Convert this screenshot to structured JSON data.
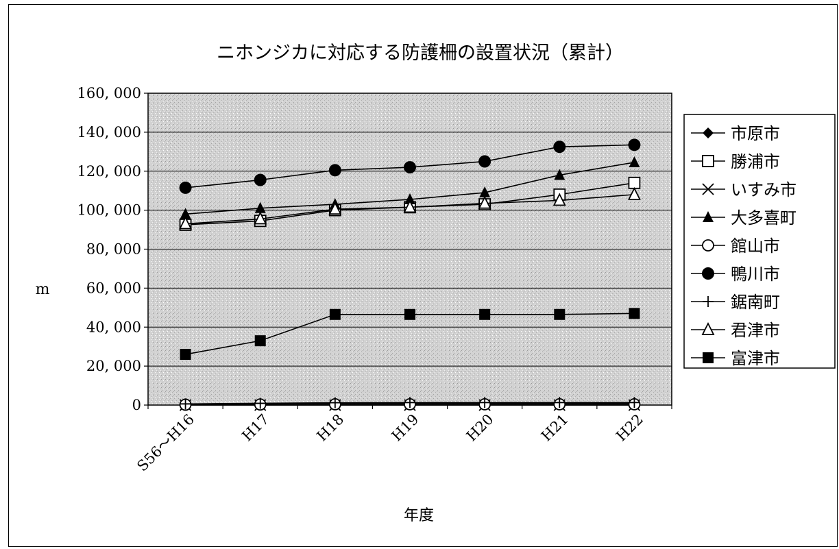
{
  "chart_data": {
    "type": "line",
    "title": "ニホンジカに対応する防護柵の設置状況（累計）",
    "xlabel": "年度",
    "ylabel": "m",
    "categories": [
      "S56～H16",
      "H17",
      "H18",
      "H19",
      "H20",
      "H21",
      "H22"
    ],
    "ylim": [
      0,
      160000
    ],
    "yticks": [
      "0",
      "20, 000",
      "40, 000",
      "60, 000",
      "80, 000",
      "100, 000",
      "120, 000",
      "140, 000",
      "160, 000"
    ],
    "grid": true,
    "legend_position": "right",
    "series": [
      {
        "name": "市原市",
        "marker": "diamond-filled",
        "values": [
          500,
          800,
          1000,
          1000,
          1000,
          1000,
          1000
        ]
      },
      {
        "name": "勝浦市",
        "marker": "square-open",
        "values": [
          92500,
          94500,
          100000,
          101500,
          103000,
          108000,
          114000
        ]
      },
      {
        "name": "いすみ市",
        "marker": "x",
        "values": [
          0,
          0,
          0,
          0,
          0,
          0,
          0
        ]
      },
      {
        "name": "大多喜町",
        "marker": "triangle-filled",
        "values": [
          98000,
          101000,
          103000,
          105500,
          109000,
          118000,
          124500
        ]
      },
      {
        "name": "館山市",
        "marker": "circle-open",
        "values": [
          200,
          300,
          400,
          400,
          400,
          400,
          400
        ]
      },
      {
        "name": "鴨川市",
        "marker": "circle-filled",
        "values": [
          111500,
          115500,
          120500,
          122000,
          125000,
          132500,
          133500
        ]
      },
      {
        "name": "鋸南町",
        "marker": "plus",
        "values": [
          600,
          900,
          1200,
          1300,
          1300,
          1300,
          1300
        ]
      },
      {
        "name": "君津市",
        "marker": "triangle-open",
        "values": [
          93000,
          95500,
          100500,
          101500,
          103500,
          105000,
          108000
        ]
      },
      {
        "name": "富津市",
        "marker": "square-filled",
        "values": [
          26000,
          33000,
          46500,
          46500,
          46500,
          46500,
          47000
        ]
      }
    ]
  }
}
